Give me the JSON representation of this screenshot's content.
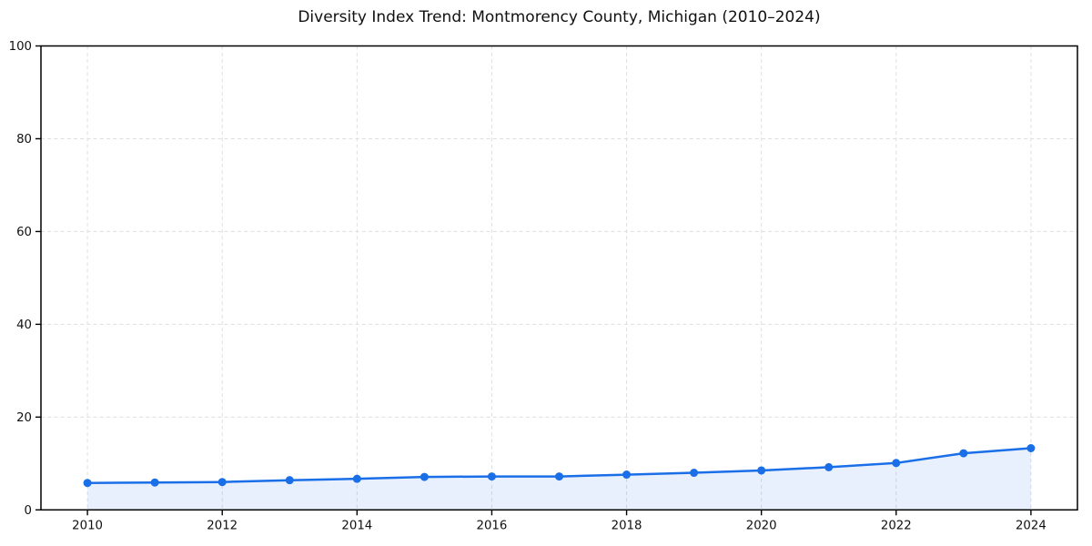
{
  "chart_data": {
    "type": "line",
    "title": "Diversity Index Trend: Montmorency County, Michigan (2010–2024)",
    "xlabel": "",
    "ylabel": "",
    "x": [
      2010,
      2011,
      2012,
      2013,
      2014,
      2015,
      2016,
      2017,
      2018,
      2019,
      2020,
      2021,
      2022,
      2023,
      2024
    ],
    "series": [
      {
        "name": "Diversity Index",
        "values": [
          5.8,
          5.9,
          6.0,
          6.4,
          6.7,
          7.1,
          7.2,
          7.2,
          7.6,
          8.0,
          8.5,
          9.2,
          10.1,
          12.2,
          13.3
        ]
      }
    ],
    "xlim": [
      2009.31,
      2024.69
    ],
    "ylim": [
      0,
      100
    ],
    "xticks": [
      2010,
      2012,
      2014,
      2016,
      2018,
      2020,
      2022,
      2024
    ],
    "yticks": [
      0,
      20,
      40,
      60,
      80,
      100
    ],
    "grid": true,
    "grid_style": "dashed",
    "legend": "none",
    "colors": {
      "line": "#1a6fe8",
      "marker": "#1a6fe8",
      "fill": "#1a6fe8",
      "grid": "#dedede",
      "spine": "#000000",
      "text": "#111111",
      "background": "#ffffff"
    },
    "fill_opacity": 0.1,
    "fill_to_baseline": 0
  }
}
